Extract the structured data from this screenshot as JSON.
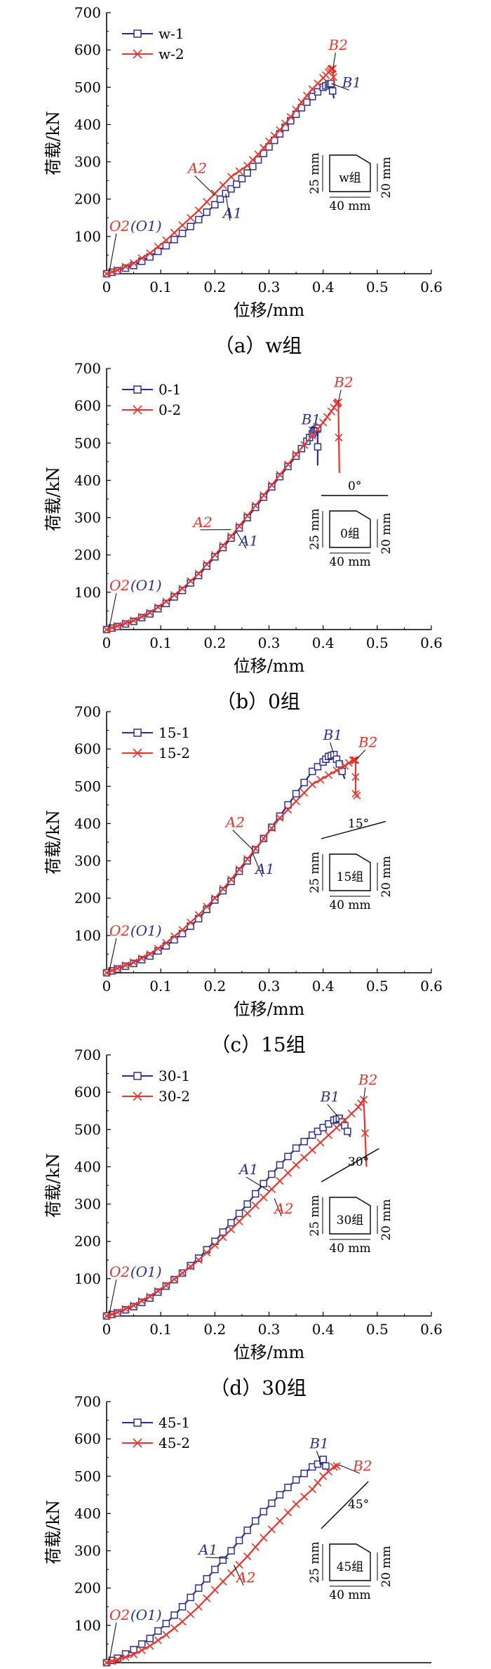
{
  "chart_data": [
    {
      "type": "line",
      "caption": "（a）w组",
      "xlabel": "位移/mm",
      "ylabel": "荷载/kN",
      "xlim": [
        0,
        0.6
      ],
      "ylim": [
        0,
        700
      ],
      "xticks": [
        "0",
        "0.1",
        "0.2",
        "0.3",
        "0.4",
        "0.5",
        "0.6"
      ],
      "yticks": [
        "100",
        "200",
        "300",
        "400",
        "500",
        "600",
        "700"
      ],
      "legend_position": "top-left",
      "series": [
        {
          "name": "w-1",
          "color": "#2b2f8c",
          "marker": "square",
          "x": [
            0,
            0.02,
            0.05,
            0.08,
            0.11,
            0.14,
            0.17,
            0.2,
            0.22,
            0.24,
            0.26,
            0.28,
            0.3,
            0.32,
            0.34,
            0.36,
            0.38,
            0.4,
            0.41,
            0.415,
            0.42
          ],
          "y": [
            0,
            8,
            22,
            45,
            75,
            108,
            145,
            185,
            215,
            240,
            270,
            305,
            340,
            375,
            410,
            445,
            475,
            500,
            508,
            510,
            470
          ]
        },
        {
          "name": "w-2",
          "color": "#e8342c",
          "marker": "x",
          "x": [
            0,
            0.02,
            0.05,
            0.08,
            0.11,
            0.14,
            0.17,
            0.2,
            0.23,
            0.26,
            0.28,
            0.3,
            0.32,
            0.34,
            0.36,
            0.38,
            0.4,
            0.41,
            0.415,
            0.418,
            0.42
          ],
          "y": [
            0,
            10,
            28,
            55,
            90,
            130,
            170,
            215,
            260,
            290,
            320,
            355,
            385,
            420,
            460,
            495,
            525,
            540,
            548,
            550,
            505
          ]
        }
      ],
      "annotations": [
        {
          "text": "O2",
          "x": 0.005,
          "y": 5,
          "tx": 0.005,
          "ty": 115,
          "color": "#e8342c",
          "extra": "(O1)",
          "extra_color": "#2b2f8c"
        },
        {
          "text": "A2",
          "x": 0.2,
          "y": 210,
          "tx": 0.15,
          "ty": 270,
          "color": "#e8342c"
        },
        {
          "text": "A1",
          "x": 0.22,
          "y": 215,
          "tx": 0.215,
          "ty": 150,
          "color": "#2b2f8c"
        },
        {
          "text": "B2",
          "x": 0.418,
          "y": 550,
          "tx": 0.41,
          "ty": 600,
          "color": "#e8342c"
        },
        {
          "text": "B1",
          "x": 0.415,
          "y": 510,
          "tx": 0.435,
          "ty": 500,
          "color": "#2b2f8c"
        }
      ],
      "inset": {
        "label": "w组",
        "angle": "",
        "h_left": "25 mm",
        "h_right": "20 mm",
        "width": "40 mm"
      }
    },
    {
      "type": "line",
      "caption": "（b）0组",
      "xlabel": "位移/mm",
      "ylabel": "荷载/kN",
      "xlim": [
        0,
        0.6
      ],
      "ylim": [
        0,
        700
      ],
      "xticks": [
        "0",
        "0.1",
        "0.2",
        "0.3",
        "0.4",
        "0.5",
        "0.6"
      ],
      "yticks": [
        "100",
        "200",
        "300",
        "400",
        "500",
        "600",
        "700"
      ],
      "legend_position": "top-left",
      "series": [
        {
          "name": "0-1",
          "color": "#2b2f8c",
          "marker": "square",
          "x": [
            0,
            0.02,
            0.05,
            0.08,
            0.11,
            0.14,
            0.17,
            0.2,
            0.23,
            0.26,
            0.29,
            0.32,
            0.35,
            0.37,
            0.38,
            0.385,
            0.39,
            0.39
          ],
          "y": [
            0,
            8,
            22,
            42,
            70,
            105,
            145,
            195,
            245,
            300,
            355,
            410,
            465,
            505,
            525,
            535,
            540,
            440
          ]
        },
        {
          "name": "0-2",
          "color": "#e8342c",
          "marker": "x",
          "x": [
            0,
            0.02,
            0.05,
            0.08,
            0.11,
            0.14,
            0.17,
            0.2,
            0.23,
            0.26,
            0.29,
            0.32,
            0.35,
            0.38,
            0.4,
            0.415,
            0.425,
            0.428,
            0.43
          ],
          "y": [
            0,
            10,
            24,
            45,
            75,
            110,
            150,
            200,
            250,
            305,
            360,
            415,
            470,
            520,
            555,
            585,
            605,
            610,
            420
          ]
        }
      ],
      "annotations": [
        {
          "text": "O2",
          "x": 0.005,
          "y": 5,
          "tx": 0.005,
          "ty": 105,
          "color": "#e8342c",
          "extra": "(O1)",
          "extra_color": "#2b2f8c"
        },
        {
          "text": "A2",
          "x": 0.23,
          "y": 268,
          "tx": 0.16,
          "ty": 275,
          "color": "#e8342c"
        },
        {
          "text": "A1",
          "x": 0.24,
          "y": 262,
          "tx": 0.245,
          "ty": 225,
          "color": "#2b2f8c"
        },
        {
          "text": "B1",
          "x": 0.39,
          "y": 540,
          "tx": 0.36,
          "ty": 550,
          "color": "#2b2f8c"
        },
        {
          "text": "B2",
          "x": 0.428,
          "y": 610,
          "tx": 0.42,
          "ty": 650,
          "color": "#e8342c"
        }
      ],
      "inset": {
        "label": "0组",
        "angle": "0°",
        "h_left": "25 mm",
        "h_right": "20 mm",
        "width": "40 mm"
      }
    },
    {
      "type": "line",
      "caption": "（c）15组",
      "xlabel": "位移/mm",
      "ylabel": "荷载/kN",
      "xlim": [
        0,
        0.6
      ],
      "ylim": [
        0,
        700
      ],
      "xticks": [
        "0",
        "0.1",
        "0.2",
        "0.3",
        "0.4",
        "0.5",
        "0.6"
      ],
      "yticks": [
        "100",
        "200",
        "300",
        "400",
        "500",
        "600",
        "700"
      ],
      "legend_position": "top-left",
      "series": [
        {
          "name": "15-1",
          "color": "#2b2f8c",
          "marker": "square",
          "x": [
            0,
            0.02,
            0.05,
            0.08,
            0.11,
            0.14,
            0.17,
            0.2,
            0.23,
            0.26,
            0.29,
            0.32,
            0.35,
            0.38,
            0.4,
            0.41,
            0.42,
            0.43,
            0.44
          ],
          "y": [
            0,
            10,
            25,
            45,
            72,
            105,
            145,
            195,
            245,
            300,
            360,
            420,
            480,
            540,
            565,
            580,
            585,
            560,
            520
          ]
        },
        {
          "name": "15-2",
          "color": "#e8342c",
          "marker": "x",
          "x": [
            0,
            0.02,
            0.05,
            0.08,
            0.11,
            0.14,
            0.17,
            0.2,
            0.23,
            0.26,
            0.29,
            0.32,
            0.35,
            0.38,
            0.41,
            0.44,
            0.455,
            0.46,
            0.46,
            0.465
          ],
          "y": [
            0,
            12,
            28,
            50,
            80,
            115,
            155,
            200,
            250,
            305,
            360,
            415,
            460,
            505,
            530,
            555,
            570,
            570,
            480,
            470
          ]
        }
      ],
      "annotations": [
        {
          "text": "O2",
          "x": 0.005,
          "y": 5,
          "tx": 0.005,
          "ty": 100,
          "color": "#e8342c",
          "extra": "(O1)",
          "extra_color": "#2b2f8c"
        },
        {
          "text": "A2",
          "x": 0.27,
          "y": 330,
          "tx": 0.22,
          "ty": 390,
          "color": "#e8342c"
        },
        {
          "text": "A1",
          "x": 0.27,
          "y": 320,
          "tx": 0.275,
          "ty": 265,
          "color": "#2b2f8c"
        },
        {
          "text": "B1",
          "x": 0.42,
          "y": 585,
          "tx": 0.4,
          "ty": 625,
          "color": "#2b2f8c"
        },
        {
          "text": "B2",
          "x": 0.46,
          "y": 570,
          "tx": 0.465,
          "ty": 605,
          "color": "#e8342c"
        }
      ],
      "inset": {
        "label": "15组",
        "angle": "15°",
        "h_left": "25 mm",
        "h_right": "20 mm",
        "width": "40 mm"
      }
    },
    {
      "type": "line",
      "caption": "（d）30组",
      "xlabel": "位移/mm",
      "ylabel": "荷载/kN",
      "xlim": [
        0,
        0.6
      ],
      "ylim": [
        0,
        700
      ],
      "xticks": [
        "0",
        "0.1",
        "0.2",
        "0.3",
        "0.4",
        "0.5",
        "0.6"
      ],
      "yticks": [
        "100",
        "200",
        "300",
        "400",
        "500",
        "600",
        "700"
      ],
      "legend_position": "top-left",
      "series": [
        {
          "name": "30-1",
          "color": "#2b2f8c",
          "marker": "square",
          "x": [
            0,
            0.02,
            0.05,
            0.08,
            0.11,
            0.14,
            0.17,
            0.2,
            0.23,
            0.26,
            0.29,
            0.32,
            0.35,
            0.38,
            0.4,
            0.42,
            0.43,
            0.44,
            0.45
          ],
          "y": [
            0,
            8,
            25,
            48,
            80,
            115,
            155,
            200,
            250,
            300,
            355,
            405,
            450,
            485,
            505,
            525,
            530,
            510,
            480
          ]
        },
        {
          "name": "30-2",
          "color": "#e8342c",
          "marker": "x",
          "x": [
            0,
            0.02,
            0.05,
            0.08,
            0.11,
            0.14,
            0.17,
            0.2,
            0.23,
            0.26,
            0.29,
            0.32,
            0.35,
            0.38,
            0.41,
            0.44,
            0.465,
            0.475,
            0.48
          ],
          "y": [
            0,
            10,
            28,
            52,
            82,
            115,
            150,
            190,
            232,
            275,
            318,
            362,
            405,
            445,
            485,
            525,
            560,
            580,
            400
          ]
        }
      ],
      "annotations": [
        {
          "text": "O2",
          "x": 0.005,
          "y": 5,
          "tx": 0.005,
          "ty": 105,
          "color": "#e8342c",
          "extra": "(O1)",
          "extra_color": "#2b2f8c"
        },
        {
          "text": "A1",
          "x": 0.3,
          "y": 335,
          "tx": 0.245,
          "ty": 380,
          "color": "#2b2f8c"
        },
        {
          "text": "A2",
          "x": 0.31,
          "y": 315,
          "tx": 0.31,
          "ty": 275,
          "color": "#e8342c"
        },
        {
          "text": "B1",
          "x": 0.43,
          "y": 530,
          "tx": 0.395,
          "ty": 575,
          "color": "#2b2f8c"
        },
        {
          "text": "B2",
          "x": 0.475,
          "y": 580,
          "tx": 0.465,
          "ty": 620,
          "color": "#e8342c"
        }
      ],
      "inset": {
        "label": "30组",
        "angle": "30°",
        "h_left": "25 mm",
        "h_right": "20 mm",
        "width": "40 mm"
      }
    },
    {
      "type": "line",
      "caption": "",
      "xlabel": "",
      "ylabel": "荷载/kN",
      "xlim": [
        0,
        0.6
      ],
      "ylim": [
        0,
        700
      ],
      "xticks": [],
      "yticks": [
        "100",
        "200",
        "300",
        "400",
        "500",
        "600",
        "700"
      ],
      "legend_position": "top-left",
      "series": [
        {
          "name": "45-1",
          "color": "#2b2f8c",
          "marker": "square",
          "x": [
            0,
            0.02,
            0.05,
            0.08,
            0.11,
            0.14,
            0.17,
            0.2,
            0.23,
            0.26,
            0.29,
            0.32,
            0.35,
            0.38,
            0.4,
            0.4,
            0.41
          ],
          "y": [
            0,
            12,
            35,
            65,
            105,
            150,
            200,
            250,
            300,
            355,
            405,
            450,
            490,
            525,
            540,
            545,
            510
          ]
        },
        {
          "name": "45-2",
          "color": "#e8342c",
          "marker": "x",
          "x": [
            0,
            0.02,
            0.05,
            0.08,
            0.11,
            0.14,
            0.17,
            0.2,
            0.23,
            0.26,
            0.29,
            0.32,
            0.35,
            0.38,
            0.4,
            0.42,
            0.43
          ],
          "y": [
            0,
            8,
            22,
            45,
            75,
            110,
            150,
            195,
            240,
            285,
            335,
            380,
            425,
            465,
            500,
            525,
            530
          ]
        }
      ],
      "annotations": [
        {
          "text": "O2",
          "x": 0.005,
          "y": 5,
          "tx": 0.005,
          "ty": 115,
          "color": "#e8342c",
          "extra": "(O1)",
          "extra_color": "#2b2f8c"
        },
        {
          "text": "A1",
          "x": 0.225,
          "y": 280,
          "tx": 0.17,
          "ty": 290,
          "color": "#2b2f8c"
        },
        {
          "text": "A2",
          "x": 0.235,
          "y": 262,
          "tx": 0.24,
          "ty": 215,
          "color": "#e8342c"
        },
        {
          "text": "B1",
          "x": 0.395,
          "y": 540,
          "tx": 0.375,
          "ty": 575,
          "color": "#2b2f8c"
        },
        {
          "text": "B2",
          "x": 0.43,
          "y": 530,
          "tx": 0.455,
          "ty": 515,
          "color": "#e8342c"
        }
      ],
      "inset": {
        "label": "45组",
        "angle": "45°",
        "h_left": "25 mm",
        "h_right": "20 mm",
        "width": "40 mm"
      }
    }
  ]
}
